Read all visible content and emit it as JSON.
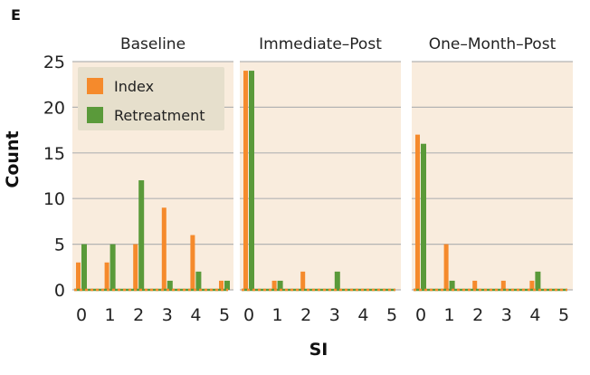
{
  "panel_label": "E",
  "chart_data": {
    "type": "bar",
    "xlabel": "SI",
    "ylabel": "Count",
    "ylim": [
      0,
      25
    ],
    "yticks": [
      0,
      5,
      10,
      15,
      20,
      25
    ],
    "categories": [
      "0",
      "1",
      "2",
      "3",
      "4",
      "5"
    ],
    "grid": true,
    "legend_position": "top-left of first panel",
    "colors": {
      "Index": "#f58a2c",
      "Retreatment": "#5a9a3a",
      "panel_background": "#f9ecdd",
      "gridline": "#b3b3b3"
    },
    "legend": [
      "Index",
      "Retreatment"
    ],
    "panels": [
      {
        "title": "Baseline",
        "series": [
          {
            "name": "Index",
            "values": [
              3,
              3,
              5,
              9,
              6,
              1
            ]
          },
          {
            "name": "Retreatment",
            "values": [
              5,
              5,
              12,
              1,
              2,
              1
            ]
          }
        ]
      },
      {
        "title": "Immediate–Post",
        "series": [
          {
            "name": "Index",
            "values": [
              24,
              1,
              2,
              0,
              0,
              0
            ]
          },
          {
            "name": "Retreatment",
            "values": [
              24,
              1,
              0,
              2,
              0,
              0
            ]
          }
        ]
      },
      {
        "title": "One–Month–Post",
        "series": [
          {
            "name": "Index",
            "values": [
              17,
              5,
              1,
              1,
              1,
              0
            ]
          },
          {
            "name": "Retreatment",
            "values": [
              16,
              1,
              0,
              0,
              2,
              0
            ]
          }
        ]
      }
    ]
  }
}
